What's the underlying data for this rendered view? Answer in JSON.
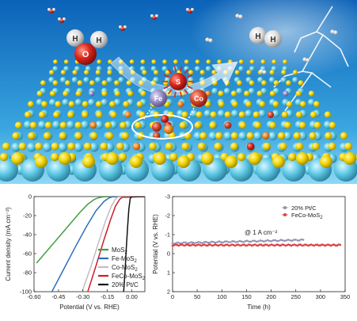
{
  "illustration": {
    "molecule_labels": {
      "water": [
        "H",
        "O",
        "H"
      ],
      "hydrogen": [
        "H",
        "H"
      ]
    },
    "atom_labels": [
      "Fe",
      "S",
      "Co"
    ],
    "colors": {
      "sky_top": "#0b62b8",
      "sky_bottom": "#7fd3f2",
      "sulfur": "#f2d400",
      "molybdenum": "#5ec9e6",
      "iron_site": "#f08a24",
      "cobalt_site": "#d8452a",
      "dopant_violet": "#9a8ec8",
      "oxygen": "#d9261c",
      "hydrogen": "#e8e8e8"
    }
  },
  "chart_data": [
    {
      "type": "line",
      "xlabel": "Potential (V vs. RHE)",
      "ylabel": "Current density (mA cm⁻²)",
      "xlim": [
        -0.6,
        0.08
      ],
      "ylim": [
        -100,
        0
      ],
      "xticks": [
        "-0.60",
        "-0.45",
        "-0.30",
        "-0.15",
        "0.00"
      ],
      "yticks": [
        "0",
        "-20",
        "-40",
        "-60",
        "-80",
        "-100"
      ],
      "legend_position": "bottom-right",
      "series": [
        {
          "name": "MoS",
          "sub": "2",
          "suffix": "",
          "color": "#3fa03f",
          "points": [
            [
              -0.585,
              -70
            ],
            [
              -0.52,
              -57
            ],
            [
              -0.45,
              -43
            ],
            [
              -0.38,
              -29
            ],
            [
              -0.32,
              -17
            ],
            [
              -0.27,
              -8
            ],
            [
              -0.23,
              -3
            ],
            [
              -0.2,
              -1
            ],
            [
              -0.17,
              -0.2
            ],
            [
              0.08,
              0
            ]
          ]
        },
        {
          "name": "Fe-MoS",
          "sub": "2",
          "suffix": "",
          "color": "#2f6fb8",
          "points": [
            [
              -0.49,
              -100
            ],
            [
              -0.42,
              -77
            ],
            [
              -0.35,
              -54
            ],
            [
              -0.28,
              -32
            ],
            [
              -0.22,
              -15
            ],
            [
              -0.17,
              -5
            ],
            [
              -0.14,
              -1.5
            ],
            [
              -0.12,
              -0.3
            ],
            [
              0.08,
              0
            ]
          ]
        },
        {
          "name": "Co-MoS",
          "sub": "2",
          "suffix": "",
          "color": "#c3bcc3",
          "points": [
            [
              -0.305,
              -100
            ],
            [
              -0.25,
              -73
            ],
            [
              -0.2,
              -46
            ],
            [
              -0.16,
              -25
            ],
            [
              -0.125,
              -10
            ],
            [
              -0.1,
              -2.5
            ],
            [
              -0.085,
              -0.5
            ],
            [
              0.08,
              0
            ]
          ]
        },
        {
          "name": "FeCo-MoS",
          "sub": "2",
          "suffix": "",
          "color": "#d01c2a",
          "points": [
            [
              -0.27,
              -100
            ],
            [
              -0.22,
              -73
            ],
            [
              -0.17,
              -45
            ],
            [
              -0.13,
              -24
            ],
            [
              -0.1,
              -10
            ],
            [
              -0.075,
              -3
            ],
            [
              -0.06,
              -0.8
            ],
            [
              0.08,
              0
            ]
          ]
        },
        {
          "name": "20% Pt/C",
          "sub": "",
          "suffix": "",
          "color": "#111111",
          "points": [
            [
              -0.05,
              -100
            ],
            [
              -0.042,
              -80
            ],
            [
              -0.034,
              -55
            ],
            [
              -0.026,
              -32
            ],
            [
              -0.018,
              -13
            ],
            [
              -0.01,
              -2
            ],
            [
              0,
              0
            ],
            [
              0.08,
              0
            ]
          ]
        }
      ]
    },
    {
      "type": "scatter",
      "xlabel": "Time (h)",
      "ylabel": "Potential (V vs. RHE)",
      "xlim": [
        0,
        350
      ],
      "ylim": [
        -3,
        2
      ],
      "xticks": [
        "0",
        "50",
        "100",
        "150",
        "200",
        "250",
        "300",
        "350"
      ],
      "yticks": [
        "-3",
        "-2",
        "-1",
        "0",
        "1",
        "2"
      ],
      "annotation": "@ 1 A cm⁻²",
      "legend_position": "top-right",
      "series": [
        {
          "name": "20% Pt/C",
          "sub": "",
          "color": "#8f8fb0",
          "x_range": [
            0,
            265
          ],
          "start": -0.55,
          "end": -0.72
        },
        {
          "name": "FeCo-MoS",
          "sub": "2",
          "color": "#d94040",
          "x_range": [
            0,
            340
          ],
          "start": -0.45,
          "end": -0.45
        }
      ]
    }
  ]
}
